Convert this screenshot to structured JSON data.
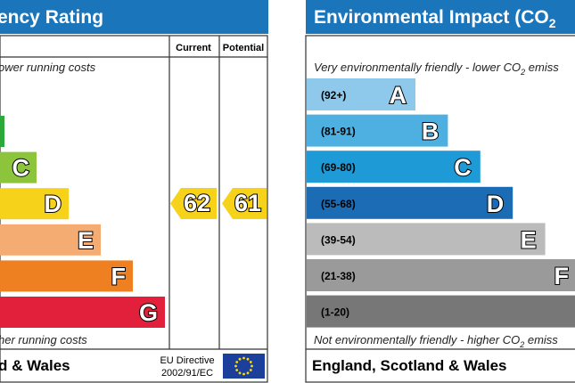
{
  "left": {
    "title": "ency Rating",
    "col_current": "Current",
    "col_potential": "Potential",
    "top_note": "ower running costs",
    "bottom_note": "her running costs",
    "footer": "d & Wales",
    "directive_1": "EU Directive",
    "directive_2": "2002/91/EC",
    "current": 62,
    "potential": 61,
    "current_color": "#f7d21b",
    "potential_color": "#f7d21b",
    "bands": [
      {
        "color": "#2da83a"
      },
      {
        "letter": "C",
        "color": "#8cc43c"
      },
      {
        "letter": "D",
        "color": "#f7d21b"
      },
      {
        "letter": "E",
        "color": "#f4ac72"
      },
      {
        "letter": "F",
        "color": "#ef8022"
      },
      {
        "letter": "G",
        "color": "#e3203c"
      }
    ]
  },
  "right": {
    "title": "Environmental Impact (CO",
    "title_sub": "2",
    "top_note": "Very environmentally friendly - lower CO",
    "top_note_sub": "2",
    "top_note_end": " emiss",
    "bottom_note": "Not environmentally friendly - higher CO",
    "bottom_note_sub": "2",
    "bottom_note_end": " emiss",
    "footer": "England, Scotland & Wales",
    "bands": [
      {
        "range": "(92+)",
        "letter": "A",
        "color": "#8ec9ec"
      },
      {
        "range": "(81-91)",
        "letter": "B",
        "color": "#4eb0e0"
      },
      {
        "range": "(69-80)",
        "letter": "C",
        "color": "#1e9ad6"
      },
      {
        "range": "(55-68)",
        "letter": "D",
        "color": "#1c6cb5"
      },
      {
        "range": "(39-54)",
        "letter": "E",
        "color": "#bbbbbb"
      },
      {
        "range": "(21-38)",
        "letter": "F",
        "color": "#9a9a9a"
      },
      {
        "range": "(1-20)",
        "color": "#777777"
      }
    ]
  }
}
